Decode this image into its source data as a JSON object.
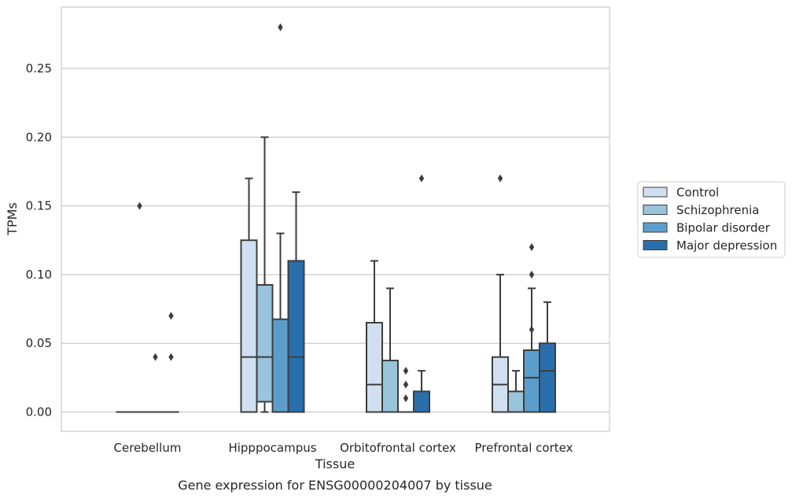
{
  "chart_data": {
    "type": "box",
    "title": "",
    "caption": "Gene expression for ENSG00000204007 by tissue",
    "xlabel": "Tissue",
    "ylabel": "TPMs",
    "ylim": [
      -0.014,
      0.29
    ],
    "yticks": [
      0.0,
      0.05,
      0.1,
      0.15,
      0.2,
      0.25
    ],
    "ytick_labels": [
      "0.00",
      "0.05",
      "0.10",
      "0.15",
      "0.20",
      "0.25"
    ],
    "grid": true,
    "legend_position": "right",
    "categories": [
      "Cerebellum",
      "Hipppocampus",
      "Orbitofrontal cortex",
      "Prefrontal cortex"
    ],
    "series": [
      {
        "name": "Control",
        "color": "#d1e0f0",
        "boxes": [
          {
            "category": "Cerebellum",
            "whislo": 0.0,
            "q1": 0.0,
            "med": 0.0,
            "q3": 0.0,
            "whishi": 0.0,
            "fliers": []
          },
          {
            "category": "Hipppocampus",
            "whislo": 0.0,
            "q1": 0.0,
            "med": 0.04,
            "q3": 0.125,
            "whishi": 0.17,
            "fliers": []
          },
          {
            "category": "Orbitofrontal cortex",
            "whislo": 0.0,
            "q1": 0.0,
            "med": 0.02,
            "q3": 0.065,
            "whishi": 0.11,
            "fliers": []
          },
          {
            "category": "Prefrontal cortex",
            "whislo": 0.0,
            "q1": 0.0,
            "med": 0.02,
            "q3": 0.04,
            "whishi": 0.1,
            "fliers": [
              0.17
            ]
          }
        ]
      },
      {
        "name": "Schizophrenia",
        "color": "#9ac3dc",
        "boxes": [
          {
            "category": "Cerebellum",
            "whislo": 0.0,
            "q1": 0.0,
            "med": 0.0,
            "q3": 0.0,
            "whishi": 0.0,
            "fliers": [
              0.15
            ]
          },
          {
            "category": "Hipppocampus",
            "whislo": 0.0,
            "q1": 0.0075,
            "med": 0.04,
            "q3": 0.0925,
            "whishi": 0.2,
            "fliers": []
          },
          {
            "category": "Orbitofrontal cortex",
            "whislo": 0.0,
            "q1": 0.0,
            "med": 0.0,
            "q3": 0.0375,
            "whishi": 0.09,
            "fliers": []
          },
          {
            "category": "Prefrontal cortex",
            "whislo": 0.0,
            "q1": 0.0,
            "med": 0.0,
            "q3": 0.015,
            "whishi": 0.03,
            "fliers": []
          }
        ]
      },
      {
        "name": "Bipolar disorder",
        "color": "#5c9ecb",
        "boxes": [
          {
            "category": "Cerebellum",
            "whislo": 0.0,
            "q1": 0.0,
            "med": 0.0,
            "q3": 0.0,
            "whishi": 0.0,
            "fliers": [
              0.04
            ]
          },
          {
            "category": "Hipppocampus",
            "whislo": 0.0,
            "q1": 0.0,
            "med": 0.0,
            "q3": 0.0675,
            "whishi": 0.13,
            "fliers": [
              0.28
            ]
          },
          {
            "category": "Orbitofrontal cortex",
            "whislo": 0.0,
            "q1": 0.0,
            "med": 0.0,
            "q3": 0.0,
            "whishi": 0.0,
            "fliers": [
              0.01,
              0.02,
              0.03
            ]
          },
          {
            "category": "Prefrontal cortex",
            "whislo": 0.0,
            "q1": 0.0,
            "med": 0.025,
            "q3": 0.045,
            "whishi": 0.09,
            "fliers": [
              0.06,
              0.1,
              0.12
            ]
          }
        ]
      },
      {
        "name": "Major depression",
        "color": "#2a6fad",
        "boxes": [
          {
            "category": "Cerebellum",
            "whislo": 0.0,
            "q1": 0.0,
            "med": 0.0,
            "q3": 0.0,
            "whishi": 0.0,
            "fliers": [
              0.04,
              0.07
            ]
          },
          {
            "category": "Hipppocampus",
            "whislo": 0.0,
            "q1": 0.0,
            "med": 0.04,
            "q3": 0.11,
            "whishi": 0.16,
            "fliers": []
          },
          {
            "category": "Orbitofrontal cortex",
            "whislo": 0.0,
            "q1": 0.0,
            "med": 0.0,
            "q3": 0.015,
            "whishi": 0.03,
            "fliers": [
              0.17
            ]
          },
          {
            "category": "Prefrontal cortex",
            "whislo": 0.0,
            "q1": 0.0,
            "med": 0.03,
            "q3": 0.05,
            "whishi": 0.08,
            "fliers": []
          }
        ]
      }
    ]
  }
}
